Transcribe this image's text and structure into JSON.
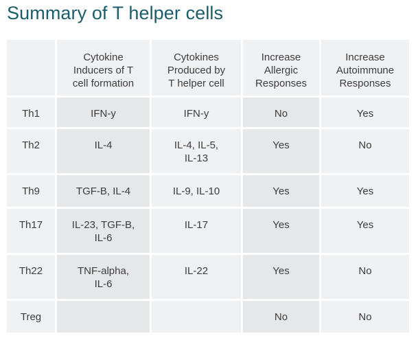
{
  "title": "Summary of T helper cells",
  "table": {
    "headers": [
      "",
      "Cytokine\nInducers of T\ncell formation",
      "Cytokines\nProduced by\nT helper cell",
      "Increase\nAllergic\nResponses",
      "Increase\nAutoimmune\nResponses"
    ],
    "rows": [
      [
        "Th1",
        "IFN-y",
        "IFN-y",
        "No",
        "Yes"
      ],
      [
        "Th2",
        "IL-4",
        "IL-4, IL-5,\nIL-13",
        "Yes",
        "No"
      ],
      [
        "Th9",
        "TGF-B, IL-4",
        "IL-9, IL-10",
        "Yes",
        "Yes"
      ],
      [
        "Th17",
        "IL-23, TGF-B,\nIL-6",
        "IL-17",
        "Yes",
        "Yes"
      ],
      [
        "Th22",
        "TNF-alpha,\nIL-6",
        "IL-22",
        "Yes",
        "No"
      ],
      [
        "Treg",
        "",
        "",
        "No",
        "No"
      ]
    ]
  },
  "colors": {
    "title": "#1b5e6b",
    "cell_light": "#f0f1f3",
    "cell_dark": "#e6e7e9",
    "text": "#3c3c3c"
  }
}
